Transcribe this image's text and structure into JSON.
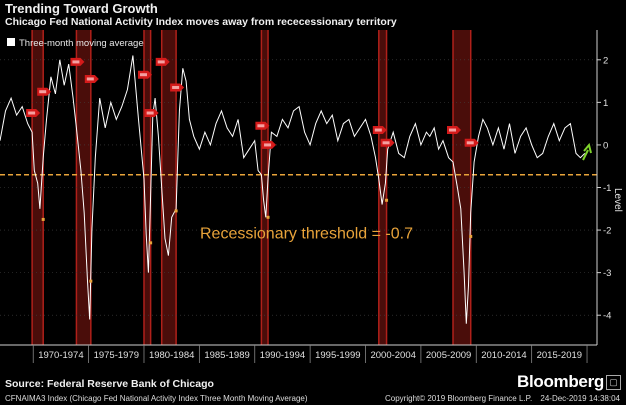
{
  "header": {
    "title": "Trending Toward Growth",
    "subtitle": "Chicago Fed National Activity Index moves away from rececessionary territory"
  },
  "chart_data": {
    "type": "line",
    "legend": {
      "label": "Three-month moving average",
      "position": "top-left"
    },
    "ylabel": "Level",
    "ylim": [
      -4.7,
      2.7
    ],
    "yticks": [
      2,
      1,
      0,
      -1,
      -2,
      -3,
      -4
    ],
    "xlim": [
      1967,
      2020.9
    ],
    "x_periods": [
      "1970-1974",
      "1975-1979",
      "1980-1984",
      "1985-1989",
      "1990-1994",
      "1995-1999",
      "2000-2004",
      "2005-2009",
      "2010-2014",
      "2015-2019"
    ],
    "threshold": {
      "value": -0.7,
      "label": "Recessionary threshold = -0.7",
      "color": "#e8a33a"
    },
    "recessions": [
      [
        1969.9,
        1970.9
      ],
      [
        1973.9,
        1975.2
      ],
      [
        1980.0,
        1980.6
      ],
      [
        1981.6,
        1982.9
      ],
      [
        1990.6,
        1991.2
      ],
      [
        2001.2,
        2001.9
      ],
      [
        2007.9,
        2009.5
      ]
    ],
    "recession_markers": [
      {
        "x": 1969.9,
        "y": 0.75
      },
      {
        "x": 1970.9,
        "y": 1.25
      },
      {
        "x": 1973.9,
        "y": 1.95
      },
      {
        "x": 1975.2,
        "y": 1.55
      },
      {
        "x": 1980.0,
        "y": 1.65
      },
      {
        "x": 1980.6,
        "y": 0.75
      },
      {
        "x": 1981.6,
        "y": 1.95
      },
      {
        "x": 1982.9,
        "y": 1.35
      },
      {
        "x": 1990.6,
        "y": 0.45
      },
      {
        "x": 1991.2,
        "y": 0.0
      },
      {
        "x": 2001.2,
        "y": 0.35
      },
      {
        "x": 2001.9,
        "y": 0.05
      },
      {
        "x": 2007.9,
        "y": 0.35
      },
      {
        "x": 2009.5,
        "y": 0.05
      }
    ],
    "trough_markers": [
      {
        "x": 1970.9,
        "y": -1.75
      },
      {
        "x": 1975.2,
        "y": -3.2
      },
      {
        "x": 1980.6,
        "y": -2.3
      },
      {
        "x": 1982.9,
        "y": -1.55
      },
      {
        "x": 1991.2,
        "y": -1.7
      },
      {
        "x": 2001.9,
        "y": -1.3
      },
      {
        "x": 2009.5,
        "y": -2.15
      }
    ],
    "series": [
      {
        "name": "Three-month moving average",
        "color": "#ffffff",
        "x": [
          1967.0,
          1967.5,
          1968.0,
          1968.5,
          1969.0,
          1969.5,
          1969.9,
          1970.1,
          1970.4,
          1970.6,
          1970.9,
          1971.2,
          1971.6,
          1972.0,
          1972.4,
          1972.8,
          1973.2,
          1973.6,
          1973.9,
          1974.3,
          1974.6,
          1974.9,
          1975.1,
          1975.3,
          1975.6,
          1976.0,
          1976.5,
          1977.0,
          1977.5,
          1978.0,
          1978.5,
          1979.0,
          1979.5,
          1980.0,
          1980.2,
          1980.4,
          1980.6,
          1980.8,
          1981.0,
          1981.3,
          1981.6,
          1981.9,
          1982.2,
          1982.5,
          1982.9,
          1983.2,
          1983.5,
          1983.8,
          1984.1,
          1984.5,
          1985.0,
          1985.5,
          1986.0,
          1986.5,
          1987.0,
          1987.5,
          1988.0,
          1988.5,
          1989.0,
          1989.5,
          1990.0,
          1990.3,
          1990.6,
          1990.8,
          1991.0,
          1991.2,
          1991.5,
          1992.0,
          1992.5,
          1993.0,
          1993.5,
          1994.0,
          1994.5,
          1995.0,
          1995.5,
          1996.0,
          1996.5,
          1997.0,
          1997.5,
          1998.0,
          1998.5,
          1999.0,
          1999.5,
          2000.0,
          2000.5,
          2000.9,
          2001.2,
          2001.5,
          2001.8,
          2002.0,
          2002.5,
          2003.0,
          2003.5,
          2004.0,
          2004.5,
          2005.0,
          2005.5,
          2005.8,
          2006.2,
          2006.6,
          2007.0,
          2007.5,
          2007.9,
          2008.3,
          2008.6,
          2008.9,
          2009.1,
          2009.3,
          2009.5,
          2009.8,
          2010.2,
          2010.6,
          2011.0,
          2011.5,
          2012.0,
          2012.5,
          2013.0,
          2013.5,
          2014.0,
          2014.5,
          2015.0,
          2015.5,
          2016.0,
          2016.5,
          2017.0,
          2017.5,
          2018.0,
          2018.5,
          2019.0,
          2019.4,
          2019.8
        ],
        "values": [
          0.1,
          0.8,
          1.1,
          0.7,
          0.9,
          0.5,
          0.3,
          -0.6,
          -0.9,
          -1.5,
          -0.3,
          0.6,
          1.6,
          1.2,
          2.0,
          1.4,
          1.9,
          1.1,
          0.4,
          -0.6,
          -1.6,
          -3.2,
          -4.1,
          -2.0,
          -0.3,
          1.1,
          0.4,
          1.0,
          0.6,
          0.9,
          1.3,
          2.1,
          0.6,
          -0.8,
          -2.1,
          -3.0,
          -1.2,
          0.7,
          1.1,
          0.2,
          -1.0,
          -2.2,
          -2.6,
          -1.7,
          -1.5,
          0.8,
          1.8,
          1.5,
          0.6,
          0.2,
          -0.1,
          0.3,
          0.0,
          0.5,
          0.8,
          0.4,
          0.2,
          0.6,
          -0.3,
          -0.1,
          0.1,
          -0.6,
          -0.7,
          -1.3,
          -1.7,
          -0.8,
          0.3,
          0.2,
          0.6,
          0.4,
          0.8,
          0.9,
          0.3,
          0.0,
          0.5,
          0.8,
          0.5,
          0.7,
          0.1,
          0.5,
          0.6,
          0.2,
          0.4,
          0.6,
          0.2,
          -0.3,
          -0.8,
          -1.4,
          -0.9,
          -0.1,
          0.3,
          -0.2,
          -0.3,
          0.2,
          0.5,
          0.0,
          0.3,
          0.2,
          0.4,
          -0.1,
          0.1,
          -0.3,
          -0.4,
          -1.0,
          -1.5,
          -3.0,
          -4.2,
          -3.3,
          -1.6,
          -0.4,
          0.2,
          0.6,
          0.4,
          0.0,
          0.4,
          -0.1,
          0.5,
          -0.2,
          0.2,
          0.4,
          0.0,
          -0.3,
          -0.2,
          0.2,
          0.5,
          0.1,
          0.4,
          0.5,
          -0.2,
          -0.3,
          -0.2
        ]
      }
    ]
  },
  "source": "Source: Federal Reserve Bank of Chicago",
  "brand": "Bloomberg",
  "footer": {
    "index": "CFNAIMA3 Index (Chicago Fed National Activity Index Three Month Moving Average)",
    "copyright": "Copyright© 2019 Bloomberg Finance L.P.",
    "timestamp": "24-Dec-2019 14:38:04"
  },
  "colors": {
    "recession_band": "#4a0d0a",
    "recession_edge": "#b0201a",
    "marker": "#d41a1a",
    "trough": "#e8a33a",
    "arrow": "#7fd32b",
    "axis": "#cfcfcf"
  }
}
